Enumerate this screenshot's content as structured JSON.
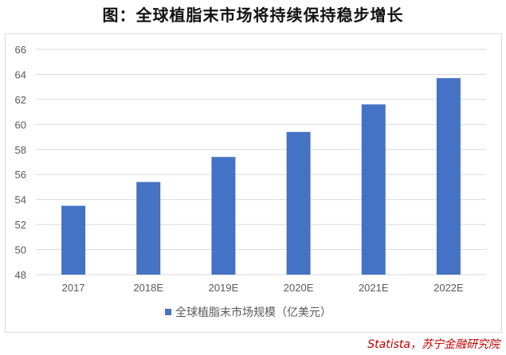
{
  "title": "图：全球植脂末市场将持续保持稳步增长",
  "source": "Statista，苏宁金融研究院",
  "chart_data": {
    "type": "bar",
    "categories": [
      "2017",
      "2018E",
      "2019E",
      "2020E",
      "2021E",
      "2022E"
    ],
    "series": [
      {
        "name": "全球植脂末市场规模（亿美元）",
        "values": [
          53.5,
          55.4,
          57.4,
          59.4,
          61.6,
          63.7
        ]
      }
    ],
    "ylim": [
      48,
      66
    ],
    "yticks": [
      48,
      50,
      52,
      54,
      56,
      58,
      60,
      62,
      64,
      66
    ],
    "grid": true,
    "legend": "bottom",
    "colors": {
      "bar": "#4472c4",
      "grid": "#d9d9d9",
      "tick": "#595959",
      "source": "#c00000"
    }
  }
}
